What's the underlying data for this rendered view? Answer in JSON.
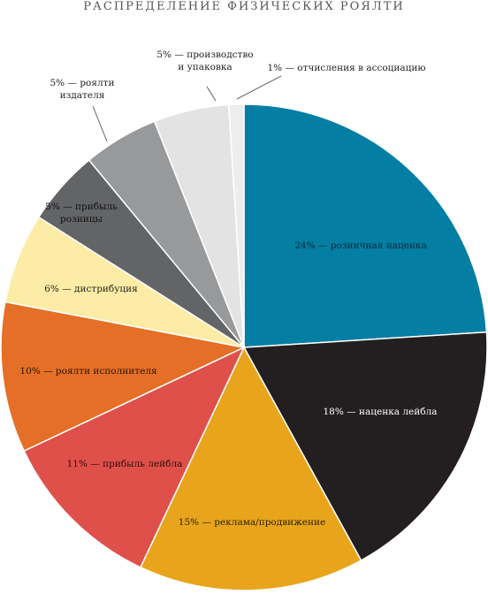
{
  "chart_data": {
    "type": "pie",
    "title": "Распределение физических роялти",
    "slices": [
      {
        "label": "24% — розничная наценка",
        "lines": [
          "24% — розничная наценка"
        ],
        "value": 24,
        "color": "#047ea3",
        "text_color": "#0d2836"
      },
      {
        "label": "18% — наценка лейбла",
        "lines": [
          "18% — наценка лейбла"
        ],
        "value": 18,
        "color": "#231f20",
        "text_color": "#ffffff"
      },
      {
        "label": "15% — реклама/продвижение",
        "lines": [
          "15% — реклама/продвижение"
        ],
        "value": 15,
        "color": "#e8a51c",
        "text_color": "#2b1f05"
      },
      {
        "label": "11% — прибыль лейбла",
        "lines": [
          "11% — прибыль лейбла"
        ],
        "value": 11,
        "color": "#e0504a",
        "text_color": "#2b0d0b"
      },
      {
        "label": "10% — роялти исполнителя",
        "lines": [
          "10% — роялти исполнителя"
        ],
        "value": 10,
        "color": "#e56f26",
        "text_color": "#2b1205"
      },
      {
        "label": "6% — дистрибуция",
        "lines": [
          "6% — дистрибуция"
        ],
        "value": 6,
        "color": "#fdeca5",
        "text_color": "#222222"
      },
      {
        "label": "5% — прибыль розницы",
        "lines": [
          "5% — прибыль",
          "розницы"
        ],
        "value": 5,
        "color": "#636466",
        "text_color": "#111111"
      },
      {
        "label": "5% — роялти издателя",
        "lines": [
          "5% — роялти",
          "издателя"
        ],
        "value": 5,
        "color": "#98999b",
        "text_color": "#222222"
      },
      {
        "label": "5% — производство и упаковка",
        "lines": [
          "5% — производство",
          "и упаковка"
        ],
        "value": 5,
        "color": "#e3e3e4",
        "text_color": "#222222"
      },
      {
        "label": "1% — отчисления в ассоциацию",
        "lines": [
          "1% — отчисления в ассоциацию"
        ],
        "value": 1,
        "color": "#ededee",
        "text_color": "#222222"
      }
    ]
  }
}
